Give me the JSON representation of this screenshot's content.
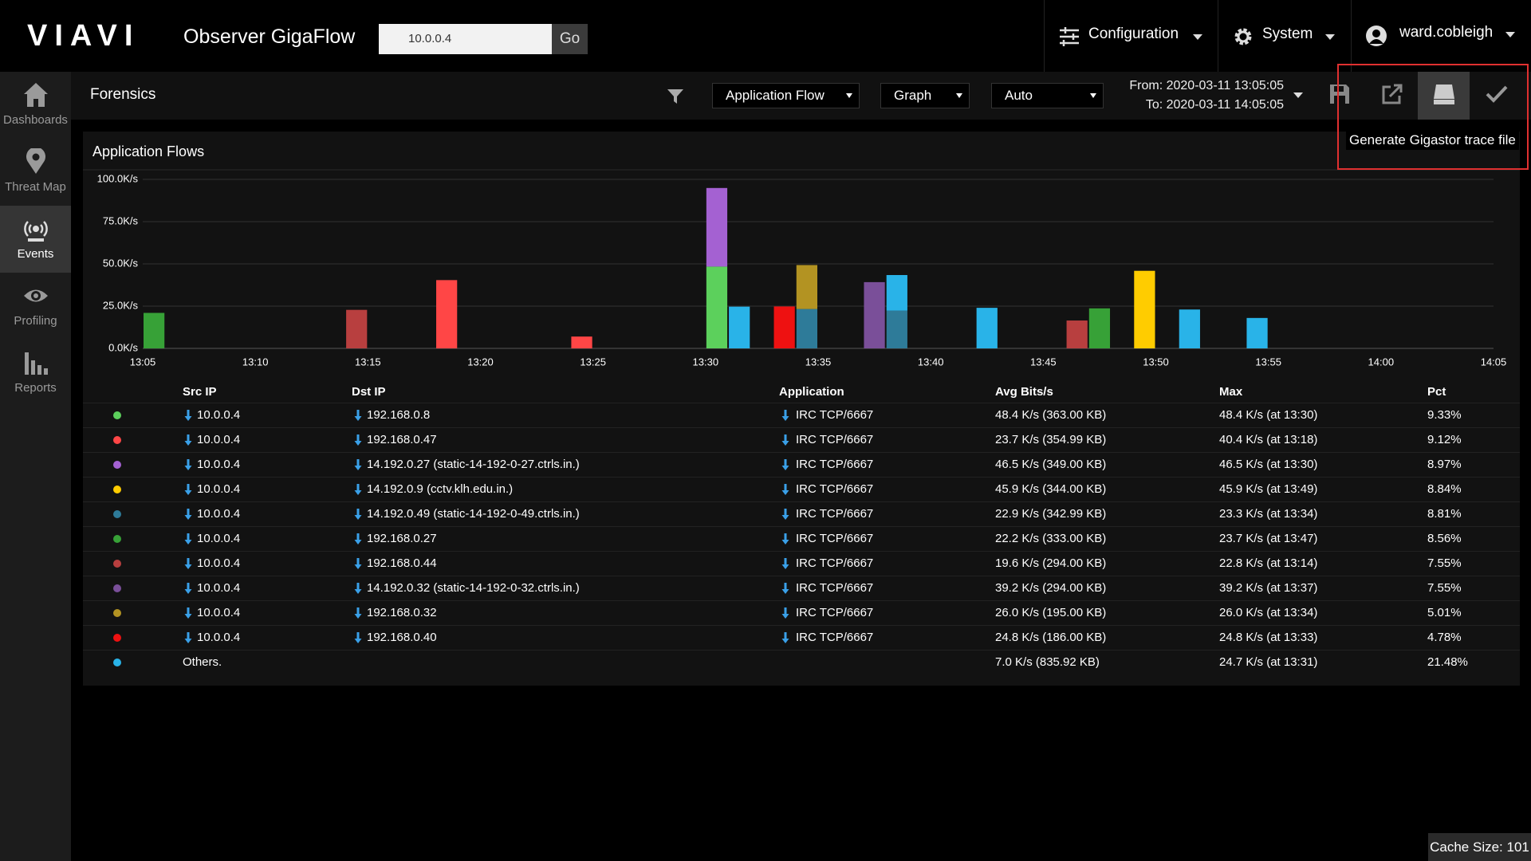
{
  "header": {
    "logo": "VIAVI",
    "app_title": "Observer GigaFlow",
    "search_value": "10.0.0.4",
    "search_button": "Go",
    "menus": [
      "Configuration",
      "System"
    ],
    "user": "ward.cobleigh"
  },
  "sidebar": [
    "Dashboards",
    "Threat Map",
    "Events",
    "Profiling",
    "Reports"
  ],
  "toolbar": {
    "title": "Forensics",
    "view": "Application Flow",
    "display": "Graph",
    "resolution": "Auto",
    "from": "From: 2020-03-11 13:05:05",
    "to": "To: 2020-03-11 14:05:05",
    "tooltip": "Generate Gigastor trace file"
  },
  "chart_data": {
    "type": "bar",
    "stacked": true,
    "title": "Application Flows",
    "x": [
      "13:05",
      "13:14",
      "13:18",
      "13:24",
      "13:30",
      "13:31",
      "13:33",
      "13:34",
      "13:37",
      "13:38",
      "13:42",
      "13:46",
      "13:47",
      "13:49",
      "13:51",
      "13:54"
    ],
    "xlim": [
      "13:05",
      "14:05"
    ],
    "xticks": [
      "13:05",
      "13:10",
      "13:15",
      "13:20",
      "13:25",
      "13:30",
      "13:35",
      "13:40",
      "13:45",
      "13:50",
      "13:55",
      "14:00",
      "14:05"
    ],
    "ylim": [
      0,
      100
    ],
    "yticks": [
      {
        "value": 0,
        "label": "0.0K/s"
      },
      {
        "value": 25,
        "label": "25.0K/s"
      },
      {
        "value": 50,
        "label": "50.0K/s"
      },
      {
        "value": 75,
        "label": "75.0K/s"
      },
      {
        "value": 100,
        "label": "100.0K/s"
      }
    ],
    "grid": true,
    "series": [
      {
        "name": "192.168.0.8",
        "color": "#5cd05c",
        "values": [
          null,
          null,
          null,
          null,
          48.4,
          null,
          null,
          null,
          null,
          null,
          null,
          null,
          null,
          null,
          null,
          null
        ]
      },
      {
        "name": "192.168.0.47",
        "color": "#ff4646",
        "values": [
          null,
          null,
          40.4,
          7,
          null,
          null,
          null,
          null,
          null,
          null,
          null,
          null,
          null,
          null,
          null,
          null
        ]
      },
      {
        "name": "14.192.0.27 (static-14-192-0-27.ctrls.in.)",
        "color": "#a461d2",
        "values": [
          null,
          null,
          null,
          null,
          46.5,
          null,
          null,
          null,
          null,
          null,
          null,
          null,
          null,
          null,
          null,
          null
        ]
      },
      {
        "name": "14.192.0.9 (cctv.klh.edu.in.)",
        "color": "#ffcc00",
        "values": [
          null,
          null,
          null,
          null,
          null,
          null,
          null,
          null,
          null,
          null,
          null,
          null,
          null,
          45.9,
          null,
          null
        ]
      },
      {
        "name": "14.192.0.49 (static-14-192-0-49.ctrls.in.)",
        "color": "#2e7b99",
        "values": [
          null,
          null,
          null,
          null,
          null,
          null,
          null,
          23.3,
          null,
          22.4,
          null,
          null,
          null,
          null,
          null,
          null
        ]
      },
      {
        "name": "192.168.0.27",
        "color": "#37a137",
        "values": [
          21,
          null,
          null,
          null,
          null,
          null,
          null,
          null,
          null,
          null,
          null,
          null,
          23.7,
          null,
          null,
          null
        ]
      },
      {
        "name": "192.168.0.44",
        "color": "#b83f3f",
        "values": [
          null,
          22.8,
          null,
          null,
          null,
          null,
          null,
          null,
          null,
          null,
          null,
          16.5,
          null,
          null,
          null,
          null
        ]
      },
      {
        "name": "14.192.0.32 (static-14-192-0-32.ctrls.in.)",
        "color": "#7a4f99",
        "values": [
          null,
          null,
          null,
          null,
          null,
          null,
          null,
          null,
          39.2,
          null,
          null,
          null,
          null,
          null,
          null,
          null
        ]
      },
      {
        "name": "192.168.0.32",
        "color": "#b39322",
        "values": [
          null,
          null,
          null,
          null,
          null,
          null,
          null,
          26.0,
          null,
          null,
          null,
          null,
          null,
          null,
          null,
          null
        ]
      },
      {
        "name": "192.168.0.40",
        "color": "#ee1111",
        "values": [
          null,
          null,
          null,
          null,
          null,
          null,
          24.8,
          null,
          null,
          null,
          null,
          null,
          null,
          null,
          null,
          null
        ]
      },
      {
        "name": "Others.",
        "color": "#29b3e8",
        "values": [
          null,
          null,
          null,
          null,
          null,
          24.7,
          null,
          null,
          null,
          21,
          24,
          null,
          null,
          null,
          23,
          18
        ]
      }
    ]
  },
  "table": {
    "columns": [
      "Src IP",
      "Dst IP",
      "Application",
      "Avg Bits/s",
      "Max",
      "Pct"
    ],
    "rows": [
      {
        "src": "10.0.0.4",
        "app": "IRC TCP/6667",
        "avg": "48.4 K/s (363.00 KB)",
        "max": "48.4 K/s (at 13:30)",
        "pct": "9.33%"
      },
      {
        "src": "10.0.0.4",
        "app": "IRC TCP/6667",
        "avg": "23.7 K/s (354.99 KB)",
        "max": "40.4 K/s (at 13:18)",
        "pct": "9.12%"
      },
      {
        "src": "10.0.0.4",
        "app": "IRC TCP/6667",
        "avg": "46.5 K/s (349.00 KB)",
        "max": "46.5 K/s (at 13:30)",
        "pct": "8.97%"
      },
      {
        "src": "10.0.0.4",
        "app": "IRC TCP/6667",
        "avg": "45.9 K/s (344.00 KB)",
        "max": "45.9 K/s (at 13:49)",
        "pct": "8.84%"
      },
      {
        "src": "10.0.0.4",
        "app": "IRC TCP/6667",
        "avg": "22.9 K/s (342.99 KB)",
        "max": "23.3 K/s (at 13:34)",
        "pct": "8.81%"
      },
      {
        "src": "10.0.0.4",
        "app": "IRC TCP/6667",
        "avg": "22.2 K/s (333.00 KB)",
        "max": "23.7 K/s (at 13:47)",
        "pct": "8.56%"
      },
      {
        "src": "10.0.0.4",
        "app": "IRC TCP/6667",
        "avg": "19.6 K/s (294.00 KB)",
        "max": "22.8 K/s (at 13:14)",
        "pct": "7.55%"
      },
      {
        "src": "10.0.0.4",
        "app": "IRC TCP/6667",
        "avg": "39.2 K/s (294.00 KB)",
        "max": "39.2 K/s (at 13:37)",
        "pct": "7.55%"
      },
      {
        "src": "10.0.0.4",
        "app": "IRC TCP/6667",
        "avg": "26.0 K/s (195.00 KB)",
        "max": "26.0 K/s (at 13:34)",
        "pct": "5.01%"
      },
      {
        "src": "10.0.0.4",
        "app": "IRC TCP/6667",
        "avg": "24.8 K/s (186.00 KB)",
        "max": "24.8 K/s (at 13:33)",
        "pct": "4.78%"
      },
      {
        "avg": "7.0 K/s (835.92 KB)",
        "max": "24.7 K/s (at 13:31)",
        "pct": "21.48%"
      }
    ]
  },
  "status": "Cache Size: 101"
}
